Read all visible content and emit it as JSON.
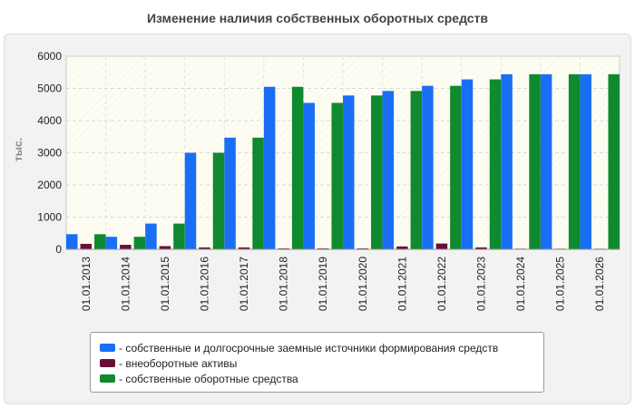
{
  "chart_data": {
    "type": "bar",
    "title": "Изменение наличия собственных оборотных средств",
    "ylabel": "тыс.",
    "xlabel": "",
    "ylim": [
      0,
      6000
    ],
    "yticks": [
      "0",
      "1000",
      "2000",
      "3000",
      "4000",
      "5000",
      "6000"
    ],
    "grid": true,
    "legend_position": "bottom",
    "categories": [
      "01.01.2013",
      "01.01.2014",
      "01.01.2015",
      "01.01.2016",
      "01.01.2017",
      "01.01.2018",
      "01.01.2019",
      "01.01.2020",
      "01.01.2021",
      "01.01.2022",
      "01.01.2023",
      "01.01.2024",
      "01.01.2025",
      "01.01.2026"
    ],
    "series": [
      {
        "name": "- собственные и долгосрочные заемные источники формирования средств",
        "color": "#1a6ef5",
        "values": [
          470,
          390,
          800,
          3000,
          3470,
          5050,
          4550,
          4780,
          4920,
          5080,
          5280,
          5440,
          5440,
          5440
        ]
      },
      {
        "name": "- внеоборотные активы",
        "color": "#6b0f3a",
        "values": [
          170,
          140,
          100,
          60,
          60,
          30,
          30,
          30,
          90,
          180,
          60,
          20,
          20,
          20
        ]
      },
      {
        "name": "- собственные оборотные средства",
        "color": "#0f8a2e",
        "values": [
          470,
          390,
          800,
          3000,
          3470,
          5050,
          4550,
          4780,
          4920,
          5080,
          5280,
          5440,
          5440,
          5440
        ]
      }
    ]
  }
}
